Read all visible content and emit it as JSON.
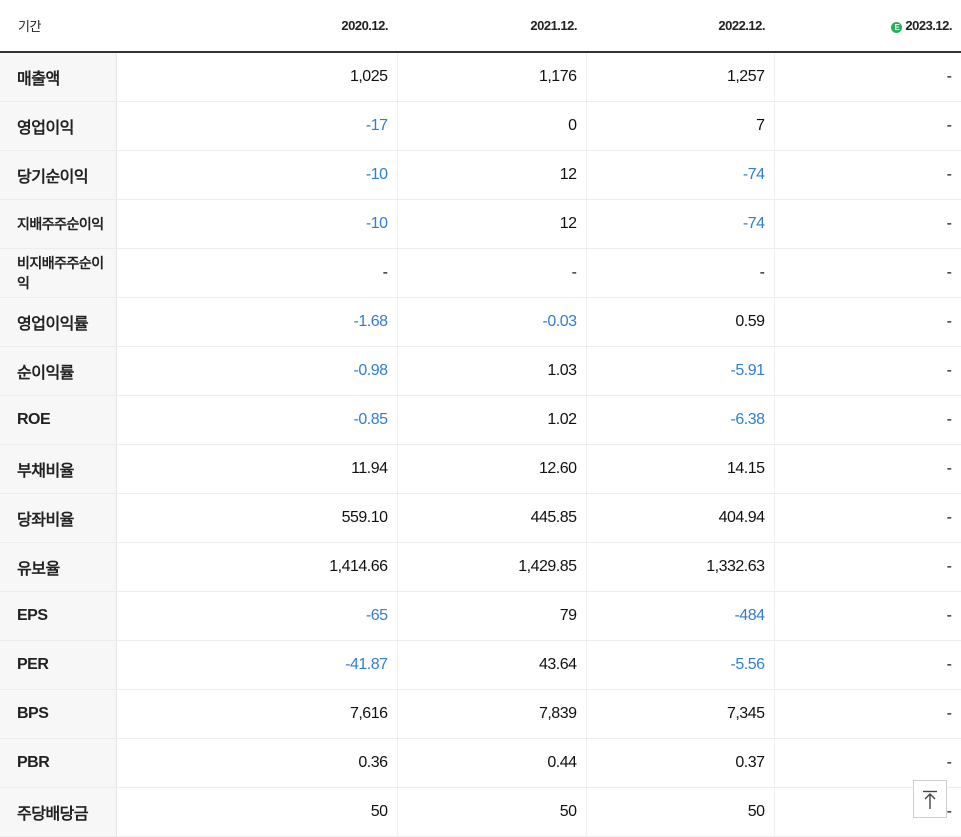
{
  "header": {
    "label": "기간",
    "periods": [
      "2020.12.",
      "2021.12.",
      "2022.12.",
      "2023.12."
    ],
    "estimate_badge": "E"
  },
  "rows": [
    {
      "label": "매출액",
      "values": [
        "1,025",
        "1,176",
        "1,257",
        "-"
      ],
      "small": false,
      "group_start": false
    },
    {
      "label": "영업이익",
      "values": [
        "-17",
        "0",
        "7",
        "-"
      ],
      "small": false,
      "group_start": false
    },
    {
      "label": "당기순이익",
      "values": [
        "-10",
        "12",
        "-74",
        "-"
      ],
      "small": false,
      "group_start": false
    },
    {
      "label": "지배주주순이익",
      "values": [
        "-10",
        "12",
        "-74",
        "-"
      ],
      "small": true,
      "group_start": false
    },
    {
      "label": "비지배주주순이익",
      "values": [
        "-",
        "-",
        "-",
        "-"
      ],
      "small": true,
      "group_start": false
    },
    {
      "label": "영업이익률",
      "values": [
        "-1.68",
        "-0.03",
        "0.59",
        "-"
      ],
      "small": false,
      "group_start": true
    },
    {
      "label": "순이익률",
      "values": [
        "-0.98",
        "1.03",
        "-5.91",
        "-"
      ],
      "small": false,
      "group_start": false
    },
    {
      "label": "ROE",
      "values": [
        "-0.85",
        "1.02",
        "-6.38",
        "-"
      ],
      "small": false,
      "group_start": false
    },
    {
      "label": "부채비율",
      "values": [
        "11.94",
        "12.60",
        "14.15",
        "-"
      ],
      "small": false,
      "group_start": true
    },
    {
      "label": "당좌비율",
      "values": [
        "559.10",
        "445.85",
        "404.94",
        "-"
      ],
      "small": false,
      "group_start": false
    },
    {
      "label": "유보율",
      "values": [
        "1,414.66",
        "1,429.85",
        "1,332.63",
        "-"
      ],
      "small": false,
      "group_start": false
    },
    {
      "label": "EPS",
      "values": [
        "-65",
        "79",
        "-484",
        "-"
      ],
      "small": false,
      "group_start": true
    },
    {
      "label": "PER",
      "values": [
        "-41.87",
        "43.64",
        "-5.56",
        "-"
      ],
      "small": false,
      "group_start": false
    },
    {
      "label": "BPS",
      "values": [
        "7,616",
        "7,839",
        "7,345",
        "-"
      ],
      "small": false,
      "group_start": false
    },
    {
      "label": "PBR",
      "values": [
        "0.36",
        "0.44",
        "0.37",
        "-"
      ],
      "small": false,
      "group_start": false
    },
    {
      "label": "주당배당금",
      "values": [
        "50",
        "50",
        "50",
        "-"
      ],
      "small": false,
      "group_start": true
    }
  ],
  "colors": {
    "negative": "#2f7fd1",
    "estimate_badge": "#2cae5f"
  },
  "scroll_top_icon": "arrow-up-to-line-icon"
}
